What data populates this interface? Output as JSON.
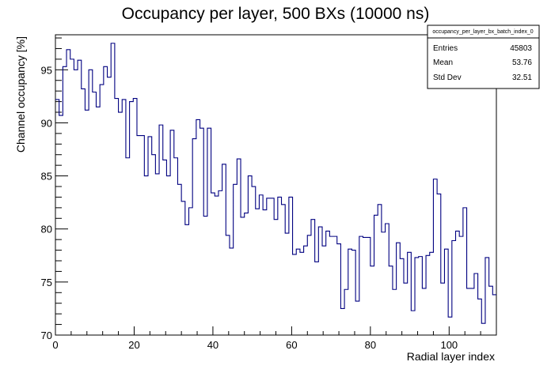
{
  "chart_data": {
    "type": "histogram-step",
    "title": "Occupancy per layer, 500 BXs (10000 ns)",
    "xlabel": "Radial layer index",
    "ylabel": "Channel occupancy [%]",
    "xlim": [
      0,
      112
    ],
    "ylim": [
      70,
      98.3
    ],
    "x_ticks": [
      "0",
      "20",
      "40",
      "60",
      "80",
      "100"
    ],
    "y_ticks": [
      "70",
      "75",
      "80",
      "85",
      "90",
      "95"
    ],
    "line_color": "#000080",
    "stats": {
      "name": "occupancy_per_layer_bx_batch_index_0",
      "rows": [
        {
          "label": "Entries",
          "value": "45803"
        },
        {
          "label": "Mean",
          "value": "53.76"
        },
        {
          "label": "Std Dev",
          "value": "32.51"
        }
      ]
    },
    "values": [
      92.2,
      90.7,
      95.3,
      96.9,
      96.0,
      95.0,
      95.9,
      93.2,
      91.2,
      95.0,
      92.9,
      91.5,
      93.6,
      95.3,
      94.3,
      97.5,
      92.3,
      91.0,
      92.2,
      86.7,
      92.0,
      92.3,
      88.8,
      88.8,
      85.0,
      88.7,
      87.0,
      85.2,
      89.8,
      86.5,
      85.0,
      89.3,
      86.7,
      84.2,
      82.6,
      80.4,
      82.0,
      88.5,
      90.3,
      89.5,
      81.2,
      89.5,
      83.4,
      83.1,
      83.6,
      86.1,
      79.4,
      78.2,
      84.2,
      86.6,
      81.1,
      81.5,
      85.0,
      84.0,
      81.9,
      83.2,
      81.8,
      82.9,
      82.9,
      80.9,
      83.0,
      82.3,
      79.6,
      83.0,
      77.6,
      78.1,
      77.8,
      78.4,
      79.4,
      80.9,
      76.9,
      80.2,
      78.4,
      79.8,
      79.3,
      79.3,
      78.6,
      72.5,
      74.3,
      78.1,
      78.0,
      73.2,
      79.3,
      79.2,
      79.2,
      76.5,
      81.3,
      82.3,
      79.7,
      80.5,
      76.5,
      74.3,
      78.7,
      77.2,
      74.9,
      77.8,
      72.3,
      77.3,
      77.4,
      74.4,
      77.5,
      77.8,
      84.7,
      83.3,
      74.9,
      78.1,
      71.7,
      78.9,
      79.8,
      79.3,
      82.0,
      74.4,
      74.4,
      75.8,
      73.4,
      71.1,
      77.3,
      74.6,
      73.8
    ]
  }
}
